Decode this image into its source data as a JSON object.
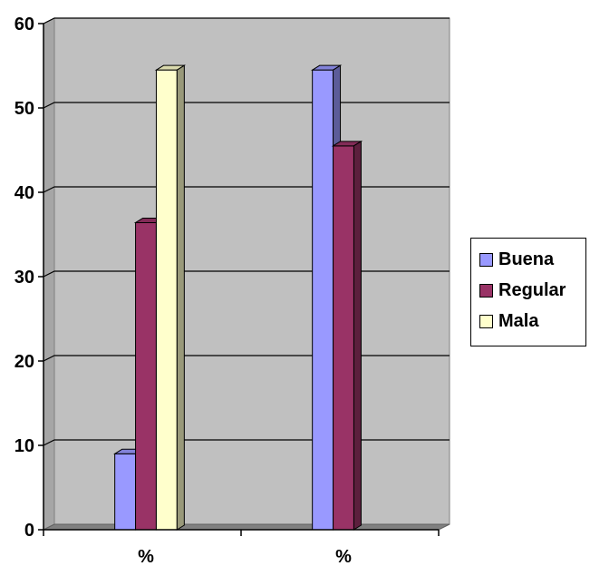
{
  "chart_data": {
    "type": "bar",
    "categories": [
      "%",
      "%"
    ],
    "series": [
      {
        "name": "Buena",
        "values": [
          9,
          54.5
        ],
        "color": "#9999ff"
      },
      {
        "name": "Regular",
        "values": [
          36.4,
          45.5
        ],
        "color": "#993366"
      },
      {
        "name": "Mala",
        "values": [
          54.5,
          null
        ],
        "color": "#ffffcc"
      }
    ],
    "ylim": [
      0,
      60
    ],
    "yticks": [
      "0",
      "10",
      "20",
      "30",
      "40",
      "50",
      "60"
    ],
    "title": "",
    "xlabel": "",
    "ylabel": "",
    "grid": true,
    "style": "3d-clustered-column",
    "legend_position": "right",
    "colors": {
      "plot_background": "#c0c0c0",
      "gridline": "#000000"
    }
  }
}
